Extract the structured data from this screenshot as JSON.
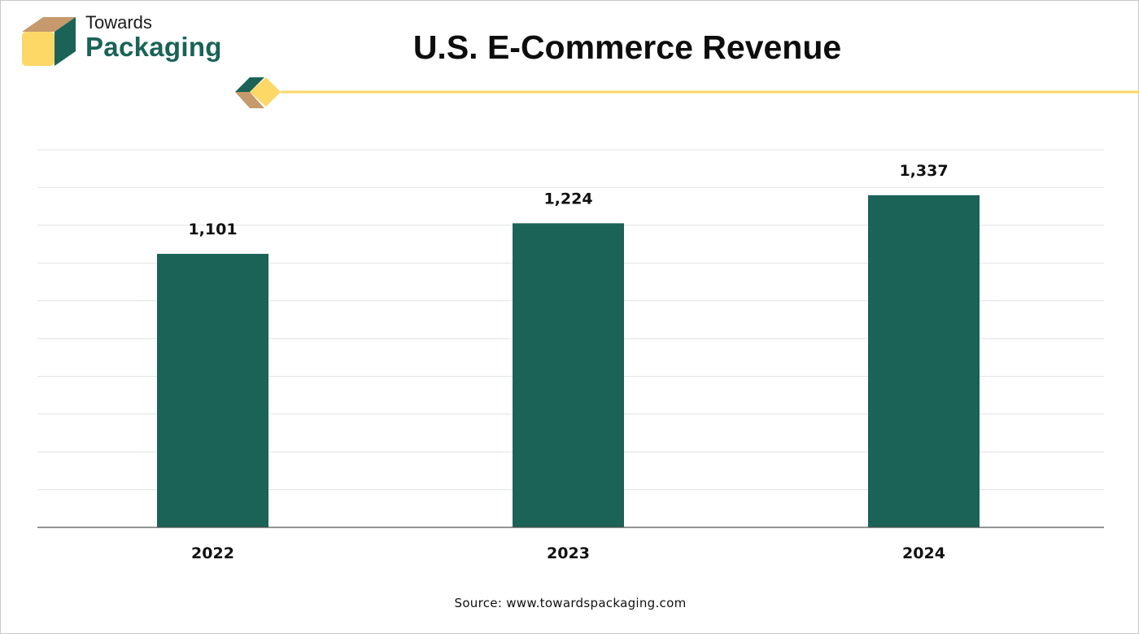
{
  "brand": {
    "line1": "Towards",
    "line2": "Packaging",
    "logo_icon": "box-icon",
    "colors": {
      "green": "#1a6356",
      "tan": "#c69a6d",
      "yellow": "#fdd867"
    }
  },
  "source_text": "Source: www.towardspackaging.com",
  "chart_data": {
    "type": "bar",
    "title": "U.S. E-Commerce Revenue",
    "xlabel": "",
    "ylabel": "",
    "categories": [
      "2022",
      "2023",
      "2024"
    ],
    "values": [
      1101,
      1224,
      1337
    ],
    "data_labels": [
      "1,101",
      "1,224",
      "1,337"
    ],
    "ylim": [
      0,
      1520
    ],
    "grid": true,
    "legend": "none",
    "bar_color": "#1a6356"
  }
}
